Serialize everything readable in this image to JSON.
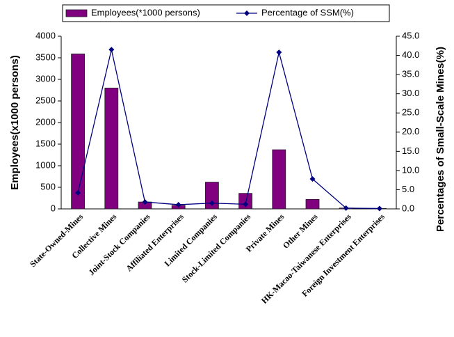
{
  "chart_data": {
    "type": "bar_line",
    "categories": [
      "State-Owned-Mines",
      "Collective Mines",
      "Joint-Stock Companies",
      "Affiliated Enterprises",
      "Limited Companies",
      "Stock-Limited Companies",
      "Private Mines",
      "Other Mines",
      "HK-Macao-Taiwanese Enterprises",
      "Foreign Investment Enterprises"
    ],
    "series": [
      {
        "name": "Employees(*1000 persons)",
        "type": "bar",
        "color": "#800080",
        "values": [
          3590,
          2800,
          160,
          80,
          620,
          360,
          1370,
          220,
          20,
          10
        ]
      },
      {
        "name": "Percentage of SSM(%)",
        "type": "line",
        "axis": "y2",
        "color": "#000080",
        "values": [
          4.2,
          41.5,
          1.8,
          1.1,
          1.5,
          1.2,
          40.8,
          7.8,
          0.2,
          0.1
        ]
      }
    ],
    "y_label": "Employees(x1000 persons)",
    "y2_label": "Percentages of Small-Scale Mines(%)",
    "ylim": [
      0,
      4000
    ],
    "yticks": [
      0,
      500,
      1000,
      1500,
      2000,
      2500,
      3000,
      3500,
      4000
    ],
    "y2lim": [
      0,
      45
    ],
    "y2ticks": [
      {
        "value": 0,
        "label": "0.0"
      },
      {
        "value": 5,
        "label": "5.0"
      },
      {
        "value": 10,
        "label": "10.0"
      },
      {
        "value": 15,
        "label": "15.0"
      },
      {
        "value": 20,
        "label": "20.0"
      },
      {
        "value": 25,
        "label": "25.0"
      },
      {
        "value": 30,
        "label": "30.0"
      },
      {
        "value": 35,
        "label": "35.0"
      },
      {
        "value": 40,
        "label": "40.0"
      },
      {
        "value": 45,
        "label": "45.0"
      }
    ],
    "legend": "top"
  }
}
